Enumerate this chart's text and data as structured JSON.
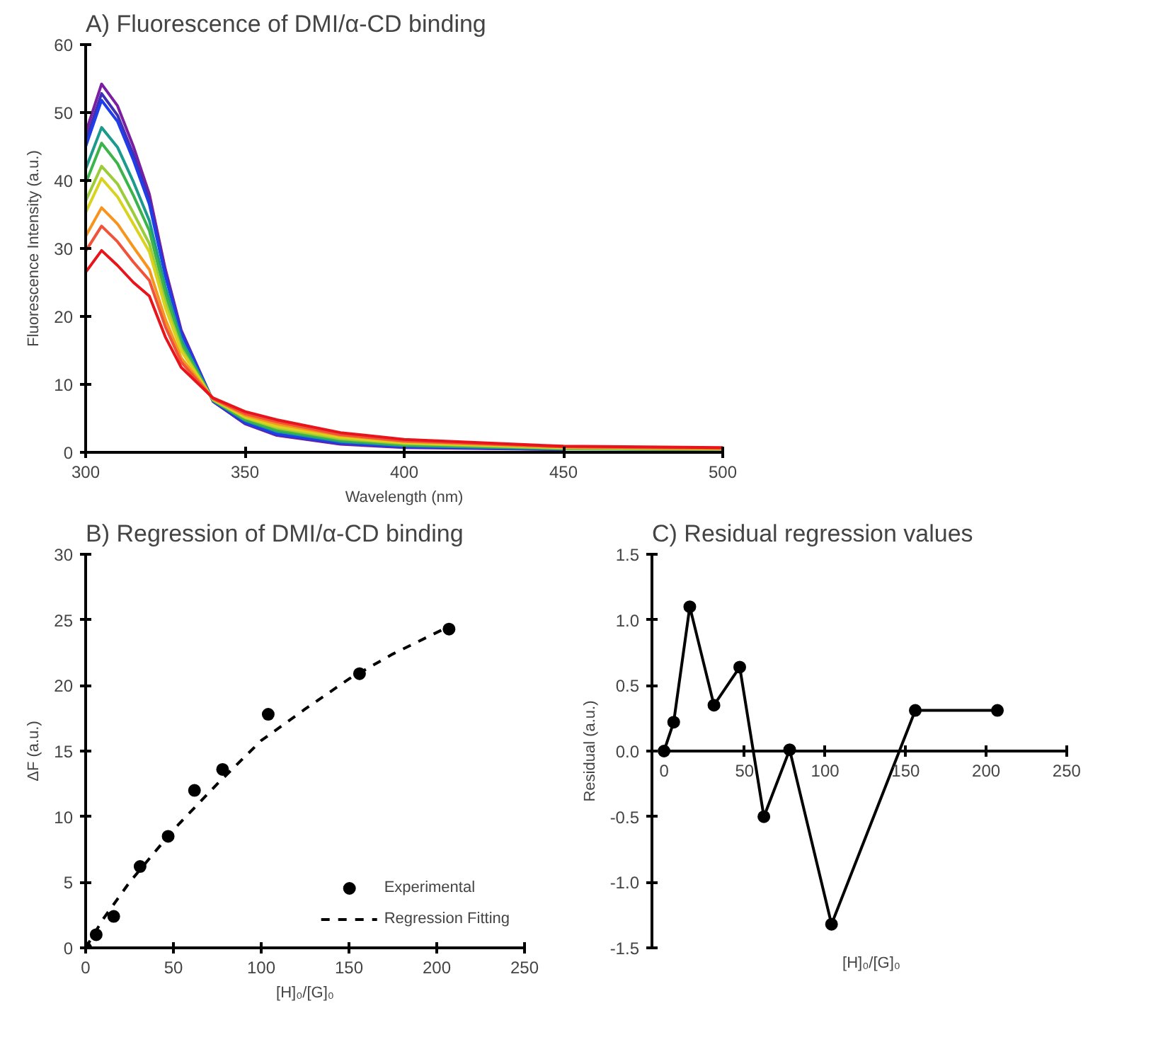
{
  "chart_data": [
    {
      "type": "line",
      "title": "A) Fluorescence of DMI/α-CD binding",
      "xlabel": "Wavelength (nm)",
      "ylabel": "Fluorescence Intensity (a.u.)",
      "x": [
        300,
        305,
        310,
        315,
        320,
        325,
        330,
        340,
        350,
        360,
        380,
        400,
        450,
        500
      ],
      "xlim": [
        300,
        500
      ],
      "xticks": [
        300,
        350,
        400,
        450,
        500
      ],
      "ylim": [
        0,
        60
      ],
      "yticks": [
        0,
        10,
        20,
        30,
        40,
        50,
        60
      ],
      "grid": false,
      "legend": false,
      "series": [
        {
          "color": "#7b1fa2",
          "values": [
            47,
            54.2,
            51,
            45,
            38,
            27,
            18,
            7.5,
            4.2,
            2.5,
            1.2,
            0.7,
            0.4,
            null
          ]
        },
        {
          "color": "#3f2fb5",
          "values": [
            45.8,
            52.8,
            49.6,
            43.8,
            37.1,
            26.4,
            17.7,
            7.5,
            4.3,
            2.6,
            1.3,
            0.8,
            0.4,
            null
          ]
        },
        {
          "color": "#1f3de8",
          "values": [
            45.0,
            51.8,
            48.7,
            43.0,
            36.5,
            26.0,
            17.5,
            7.6,
            4.4,
            2.7,
            1.4,
            0.8,
            0.5,
            null
          ]
        },
        {
          "color": "#1c9a8c",
          "values": [
            41.7,
            47.8,
            44.9,
            39.8,
            34.1,
            24.4,
            16.6,
            7.6,
            4.7,
            3.1,
            1.6,
            1.0,
            0.5,
            0.4
          ]
        },
        {
          "color": "#3cb44a",
          "values": [
            39.6,
            45.5,
            42.5,
            37.8,
            32.6,
            23.4,
            16.0,
            7.7,
            4.8,
            3.3,
            1.8,
            1.1,
            0.6,
            0.4
          ]
        },
        {
          "color": "#9ccc3a",
          "values": [
            37.0,
            42.1,
            39.5,
            35.2,
            30.7,
            22.1,
            15.3,
            7.7,
            5.1,
            3.6,
            2.0,
            1.3,
            0.6,
            0.5
          ]
        },
        {
          "color": "#d9d21e",
          "values": [
            35.3,
            40.3,
            37.6,
            33.6,
            29.5,
            21.3,
            14.9,
            7.8,
            5.2,
            3.8,
            2.2,
            1.4,
            0.7,
            0.5
          ]
        },
        {
          "color": "#f7941d",
          "values": [
            31.8,
            36.0,
            33.6,
            30.2,
            26.9,
            19.6,
            13.9,
            7.9,
            5.5,
            4.2,
            2.5,
            1.6,
            0.8,
            0.6
          ]
        },
        {
          "color": "#f0533a",
          "values": [
            29.6,
            33.3,
            31.0,
            28.0,
            25.3,
            18.5,
            13.3,
            7.9,
            5.7,
            4.5,
            2.6,
            1.7,
            0.8,
            0.6
          ]
        },
        {
          "color": "#e8141c",
          "values": [
            26.5,
            29.7,
            27.5,
            25,
            23,
            17,
            12.5,
            8,
            6,
            4.8,
            2.9,
            1.9,
            0.9,
            0.7
          ]
        }
      ]
    },
    {
      "type": "scatter",
      "title": "B) Regression of DMI/α-CD binding",
      "xlabel": "[H]₀/[G]₀",
      "ylabel": "ΔF (a.u.)",
      "xlim": [
        0,
        250
      ],
      "xticks": [
        0,
        50,
        100,
        150,
        200,
        250
      ],
      "ylim": [
        0,
        30
      ],
      "yticks": [
        0,
        5,
        10,
        15,
        20,
        25,
        30
      ],
      "grid": false,
      "legend": "bottom right",
      "series": [
        {
          "name": "Experimental",
          "type": "scatter",
          "marker": "circle",
          "color": "#000000",
          "x": [
            0,
            6,
            16,
            31,
            47,
            62,
            78,
            104,
            156,
            207
          ],
          "values": [
            0,
            1.0,
            2.4,
            6.2,
            8.5,
            12.0,
            13.6,
            17.8,
            20.9,
            24.3
          ]
        },
        {
          "name": "Regression Fitting",
          "type": "line",
          "line_style": "dashed",
          "color": "#000000",
          "x": [
            0,
            10,
            25,
            50,
            75,
            100,
            125,
            150,
            175,
            207
          ],
          "values": [
            0,
            2.2,
            5.0,
            9.0,
            12.5,
            15.8,
            18.2,
            20.5,
            22.4,
            24.5
          ]
        }
      ]
    },
    {
      "type": "line",
      "title": "C) Residual regression values",
      "xlabel": "[H]₀/[G]₀",
      "ylabel": "Residual (a.u.)",
      "marker": "circle",
      "x": [
        0,
        6,
        16,
        31,
        47,
        62,
        78,
        104,
        156,
        207
      ],
      "xlim": [
        0,
        250
      ],
      "xticks": [
        0,
        50,
        100,
        150,
        200,
        250
      ],
      "ylim": [
        -1.5,
        1.5
      ],
      "yticks": [
        {
          "value": -1.5,
          "label": "-1.5"
        },
        {
          "value": -1,
          "label": "-1.0"
        },
        {
          "value": -0.5,
          "label": "-0.5"
        },
        {
          "value": 0,
          "label": "0.0"
        },
        {
          "value": 0.5,
          "label": "0.5"
        },
        {
          "value": 1,
          "label": "1.0"
        },
        {
          "value": 1.5,
          "label": "1.5"
        }
      ],
      "grid": false,
      "legend": false,
      "series": [
        {
          "color": "#000000",
          "values": [
            0,
            0.22,
            1.1,
            0.35,
            0.64,
            -0.5,
            0.01,
            -1.32,
            0.31,
            0.31
          ]
        }
      ]
    }
  ]
}
